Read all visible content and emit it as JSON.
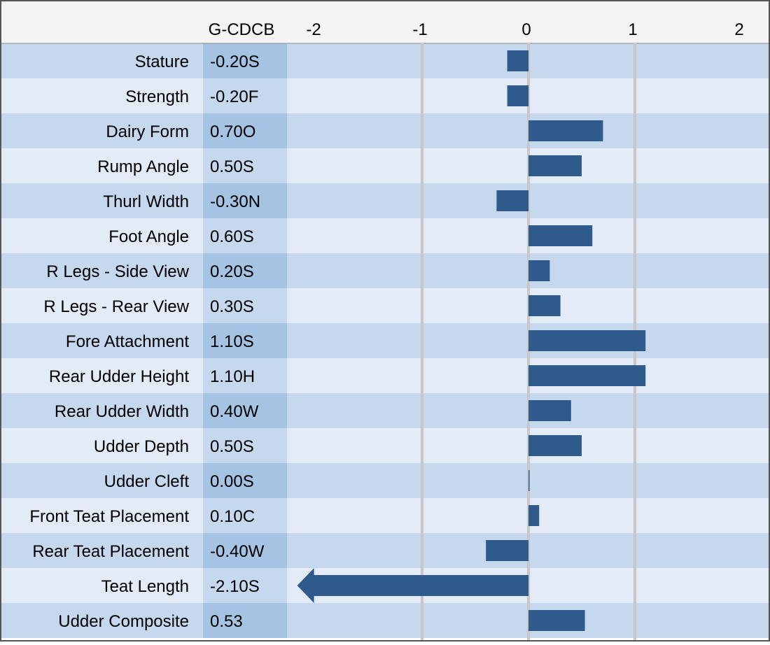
{
  "chart_data": {
    "type": "bar",
    "orientation": "horizontal",
    "value_column_header": "G-CDCB",
    "xlim": [
      -2.2,
      2.2
    ],
    "x_ticks": [
      -2,
      -1,
      0,
      1,
      2
    ],
    "x_tick_labels": [
      "-2",
      "-1",
      "0",
      "1",
      "2"
    ],
    "gridlines": "vertical at -1, 0, 1",
    "categories": [
      "Stature",
      "Strength",
      "Dairy Form",
      "Rump Angle",
      "Thurl Width",
      "Foot Angle",
      "R Legs - Side View",
      "R Legs - Rear View",
      "Fore Attachment",
      "Rear Udder Height",
      "Rear Udder Width",
      "Udder Depth",
      "Udder Cleft",
      "Front Teat Placement",
      "Rear Teat Placement",
      "Teat Length",
      "Udder Composite"
    ],
    "values": [
      -0.2,
      -0.2,
      0.7,
      0.5,
      -0.3,
      0.6,
      0.2,
      0.3,
      1.1,
      1.1,
      0.4,
      0.5,
      0.0,
      0.1,
      -0.4,
      -2.1,
      0.53
    ],
    "value_labels": [
      "-0.20S",
      "-0.20F",
      "0.70O",
      "0.50S",
      "-0.30N",
      "0.60S",
      "0.20S",
      "0.30S",
      "1.10S",
      "1.10H",
      "0.40W",
      "0.50S",
      "0.00S",
      "0.10C",
      "-0.40W",
      "-2.10S",
      "0.53"
    ],
    "clipped": [
      false,
      false,
      false,
      false,
      false,
      false,
      false,
      false,
      false,
      false,
      false,
      false,
      false,
      false,
      false,
      true,
      false
    ],
    "colors": {
      "bar": "#2e5a8c",
      "row_dark": "#c5d8ee",
      "row_light": "#e3ecf6",
      "value_col_dark": "#a5c3e2",
      "value_col_light": "#c5d8ee",
      "header_bg": "#f4f4f4",
      "gridline": "#c8c8c8",
      "text": "#000000"
    }
  }
}
